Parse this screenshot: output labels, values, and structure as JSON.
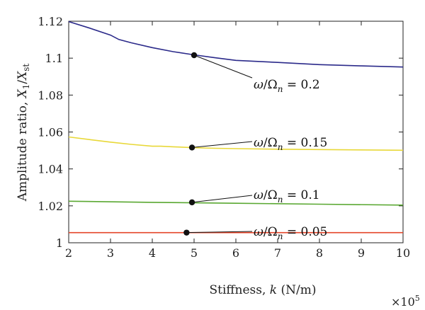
{
  "chart_data": {
    "type": "line",
    "xlabel": {
      "main": "Stiffness, ",
      "var": "k",
      "unit": " (N/m)"
    },
    "ylabel": {
      "main": "Amplitude ratio, ",
      "num": "X",
      "num_sub": "1",
      "den": "X",
      "den_sub": "st"
    },
    "x_multiplier": {
      "base": "×10",
      "exp": "5"
    },
    "xlim": [
      2,
      10
    ],
    "ylim": [
      1,
      1.12
    ],
    "x_ticks": [
      2,
      3,
      4,
      5,
      6,
      7,
      8,
      9,
      10
    ],
    "x_tick_labels": [
      "2",
      "3",
      "4",
      "5",
      "6",
      "7",
      "8",
      "9",
      "10"
    ],
    "y_ticks": [
      1,
      1.02,
      1.04,
      1.06,
      1.08,
      1.1,
      1.12
    ],
    "y_tick_labels": [
      "1",
      "1.02",
      "1.04",
      "1.06",
      "1.08",
      "1.1",
      "1.12"
    ],
    "grid": false,
    "series": [
      {
        "color": "#2b2a8a",
        "x": [
          2,
          2.5,
          3,
          3.2,
          3.5,
          4,
          4.5,
          5,
          5.5,
          6,
          7,
          8,
          9,
          10
        ],
        "y": [
          1.1198,
          1.1163,
          1.1125,
          1.1101,
          1.1083,
          1.1057,
          1.1035,
          1.1018,
          1.1002,
          1.0988,
          1.0977,
          1.0965,
          1.0958,
          1.0952
        ],
        "annotation": {
          "var": "ω",
          "den": "Ω",
          "den_sub": "n",
          "value": "= 0.2"
        },
        "marker": {
          "x": 5.0,
          "y": 1.1016
        }
      },
      {
        "color": "#e8d838",
        "x": [
          2,
          2.5,
          3,
          3.5,
          4,
          4.2,
          4.5,
          5,
          5.5,
          6,
          7,
          8,
          9,
          10
        ],
        "y": [
          1.0573,
          1.0559,
          1.0545,
          1.0533,
          1.0523,
          1.0523,
          1.052,
          1.0515,
          1.0512,
          1.051,
          1.0507,
          1.0505,
          1.0503,
          1.0501
        ],
        "annotation": {
          "var": "ω",
          "den": "Ω",
          "den_sub": "n",
          "value": "= 0.15"
        },
        "marker": {
          "x": 4.95,
          "y": 1.0516
        }
      },
      {
        "color": "#5aa832",
        "x": [
          2,
          4,
          6,
          8,
          10
        ],
        "y": [
          1.0225,
          1.0219,
          1.0214,
          1.0209,
          1.0204
        ],
        "annotation": {
          "var": "ω",
          "den": "Ω",
          "den_sub": "n",
          "value": "= 0.1"
        },
        "marker": {
          "x": 4.95,
          "y": 1.0219
        }
      },
      {
        "color": "#e4452a",
        "x": [
          2,
          10
        ],
        "y": [
          1.0055,
          1.0055
        ],
        "annotation": {
          "var": "ω",
          "den": "Ω",
          "den_sub": "n",
          "value": "= 0.05"
        },
        "marker": {
          "x": 4.82,
          "y": 1.0055
        }
      }
    ]
  }
}
